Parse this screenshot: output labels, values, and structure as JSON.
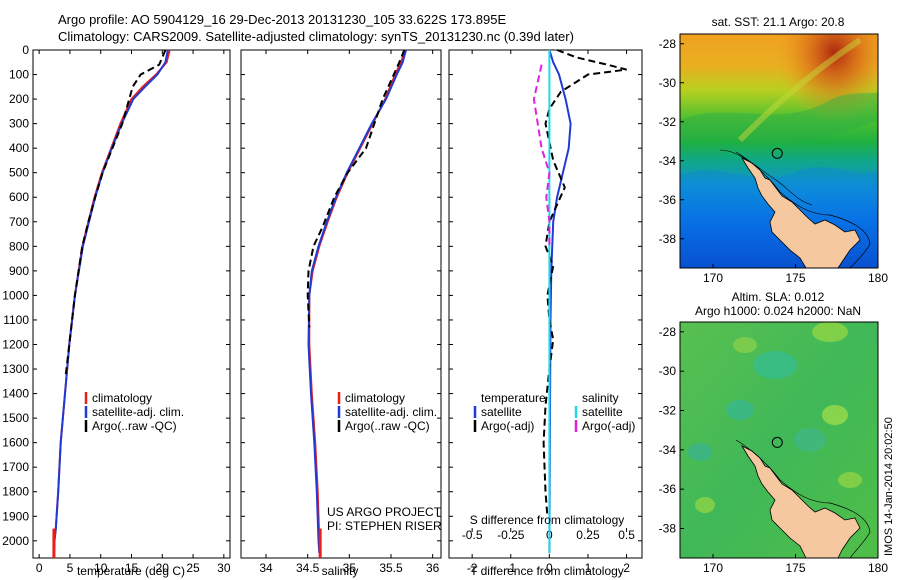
{
  "figure": {
    "title_line1": "Argo profile: AO 5904129_16 29-Dec-2013 20131230_105 33.622S 173.895E",
    "title_line2": "Climatology: CARS2009. Satellite-adjusted climatology: synTS_20131230.nc (0.39d later)",
    "timestamp": "IMOS 14-Jan-2014 20:02:50",
    "project_line1": "US ARGO PROJECT",
    "project_line2": "PI: STEPHEN RISER"
  },
  "chart_data": [
    {
      "type": "line",
      "id": "temperature",
      "xlabel": "temperature (deg C)",
      "ylabel": "",
      "xlim": [
        -1,
        31
      ],
      "ylim": [
        2070,
        0
      ],
      "xticks": [
        0,
        5,
        10,
        15,
        20,
        25,
        30
      ],
      "yticks": [
        0,
        100,
        200,
        300,
        400,
        500,
        600,
        700,
        800,
        900,
        1000,
        1100,
        1200,
        1300,
        1400,
        1500,
        1600,
        1700,
        1800,
        1900,
        2000
      ],
      "legend": [
        "climatology",
        "satellite-adj. clim.",
        "Argo(..raw -QC)"
      ],
      "legend_position": "bottom-center",
      "series": [
        {
          "name": "climatology",
          "color": "#e8201c",
          "dash": "solid",
          "x": [
            21.2,
            20.7,
            19.0,
            16.8,
            15.0,
            13.2,
            11.7,
            10.2,
            9.0,
            8.0,
            7.0,
            5.8,
            4.9,
            4.2,
            3.5,
            3.1,
            2.7,
            2.5,
            2.4
          ],
          "y": [
            0,
            50,
            100,
            150,
            200,
            300,
            400,
            500,
            600,
            700,
            800,
            1000,
            1200,
            1400,
            1600,
            1800,
            1950,
            2000,
            2050
          ]
        },
        {
          "name": "satellite-adj. clim.",
          "color": "#1f3bd6",
          "dash": "solid",
          "x": [
            20.9,
            20.5,
            19.2,
            17.2,
            15.3,
            13.4,
            11.8,
            10.3,
            9.1,
            8.1,
            7.1,
            5.8,
            4.9,
            4.2,
            3.5,
            3.1,
            2.7,
            2.5,
            2.4
          ],
          "y": [
            0,
            50,
            100,
            150,
            200,
            300,
            400,
            500,
            600,
            700,
            800,
            1000,
            1200,
            1400,
            1600,
            1800,
            1950,
            2000,
            2050
          ]
        },
        {
          "name": "Argo(..raw -QC)",
          "color": "#000000",
          "dash": "dashed",
          "x": [
            20.5,
            19.5,
            16.5,
            15.2,
            13.5,
            11.9,
            10.3,
            9.1,
            8.0,
            7.0,
            5.8,
            4.9,
            4.3
          ],
          "y": [
            0,
            60,
            100,
            150,
            300,
            400,
            500,
            600,
            700,
            800,
            1000,
            1200,
            1330
          ]
        }
      ]
    },
    {
      "type": "line",
      "id": "salinity",
      "xlabel": "salinity",
      "ylabel": "",
      "xlim": [
        33.7,
        36.1
      ],
      "ylim": [
        2070,
        0
      ],
      "xticks": [
        34,
        34.5,
        35,
        35.5,
        36
      ],
      "legend": [
        "climatology",
        "satellite-adj. clim.",
        "Argo(..raw -QC)"
      ],
      "legend_position": "bottom-center",
      "series": [
        {
          "name": "climatology",
          "color": "#e8201c",
          "dash": "solid",
          "x": [
            35.67,
            35.62,
            35.55,
            35.43,
            35.28,
            35.13,
            34.98,
            34.85,
            34.74,
            34.64,
            34.56,
            34.52,
            34.52,
            34.55,
            34.59,
            34.62,
            34.64,
            34.65
          ],
          "y": [
            0,
            50,
            100,
            200,
            300,
            400,
            500,
            600,
            700,
            800,
            900,
            1000,
            1200,
            1400,
            1600,
            1800,
            2000,
            2050
          ]
        },
        {
          "name": "satellite-adj. clim.",
          "color": "#1f3bd6",
          "dash": "solid",
          "x": [
            35.68,
            35.64,
            35.57,
            35.44,
            35.27,
            35.12,
            34.97,
            34.84,
            34.73,
            34.63,
            34.55,
            34.52,
            34.51,
            34.54,
            34.58,
            34.61,
            34.63,
            34.64
          ],
          "y": [
            0,
            50,
            100,
            200,
            300,
            400,
            500,
            600,
            700,
            800,
            900,
            1000,
            1200,
            1400,
            1600,
            1800,
            2000,
            2050
          ]
        },
        {
          "name": "Argo(..raw -QC)",
          "color": "#000000",
          "dash": "dashed",
          "x": [
            35.66,
            35.6,
            35.4,
            35.2,
            34.98,
            34.82,
            34.68,
            34.57,
            34.51,
            34.5,
            34.52
          ],
          "y": [
            0,
            50,
            200,
            400,
            500,
            600,
            720,
            800,
            900,
            1000,
            1130
          ]
        }
      ]
    },
    {
      "type": "line",
      "id": "difference",
      "xlabel": "T difference from climatology",
      "xlabel_secondary": "S difference from climatology",
      "ylabel": "",
      "xlim": [
        -2.6,
        2.4
      ],
      "ylim": [
        2070,
        0
      ],
      "xticks": [
        -2,
        -1,
        0,
        1,
        2
      ],
      "xticks_secondary": [
        -0.5,
        -0.25,
        0,
        0.25,
        0.5
      ],
      "legend_header_left": "temperature",
      "legend_header_right": "salinity",
      "legend": [
        "satellite",
        "Argo(-adj)",
        "satellite",
        "Argo(-adj)"
      ],
      "legend_position": "bottom",
      "series": [
        {
          "name": "satellite",
          "group": "temperature",
          "color": "#1f3bd6",
          "dash": "solid",
          "x": [
            0.0,
            0.1,
            0.25,
            0.42,
            0.55,
            0.5,
            0.35,
            0.2,
            0.1,
            0.05,
            0.03,
            0.02,
            0.01,
            0.0
          ],
          "y": [
            0,
            50,
            100,
            200,
            300,
            400,
            500,
            600,
            700,
            900,
            1100,
            1400,
            1800,
            2050
          ]
        },
        {
          "name": "Argo(-adj)",
          "group": "temperature",
          "color": "#000000",
          "dash": "dashed",
          "x": [
            0.2,
            0.7,
            1.5,
            2.0,
            1.0,
            0.6,
            0.3,
            0.0,
            -0.1,
            0.1,
            0.4,
            0.0,
            -0.1,
            0.1,
            -0.05,
            0.0,
            0.1,
            0.0,
            -0.1,
            -0.15,
            -0.1,
            -0.05
          ],
          "y": [
            0,
            30,
            60,
            80,
            100,
            140,
            170,
            240,
            300,
            450,
            560,
            700,
            800,
            880,
            1000,
            1100,
            1180,
            1300,
            1450,
            1600,
            1800,
            1900
          ]
        },
        {
          "name": "satellite",
          "group": "salinity",
          "color": "#22d8e8",
          "dash": "solid",
          "x": [
            0.0,
            0.0,
            0.0,
            0.0,
            0.0
          ],
          "y": [
            0,
            300,
            800,
            1500,
            2050
          ]
        },
        {
          "name": "Argo(-adj)",
          "group": "salinity",
          "color": "#e020e0",
          "dash": "dashed",
          "x": [
            -0.05,
            -0.1,
            -0.05,
            0.0,
            -0.02,
            0.0,
            0.0
          ],
          "y": [
            60,
            200,
            400,
            500,
            600,
            700,
            800
          ]
        }
      ]
    },
    {
      "type": "heatmap",
      "id": "sst-map",
      "title": "sat. SST: 21.1  Argo: 20.8",
      "xlim": [
        168,
        180
      ],
      "ylim": [
        -39.5,
        -27.5
      ],
      "xticks": [
        170,
        175,
        180
      ],
      "yticks": [
        -28,
        -30,
        -32,
        -34,
        -36,
        -38
      ],
      "profile_location": [
        173.895,
        -33.622
      ]
    },
    {
      "type": "heatmap",
      "id": "sla-map",
      "title_line1": "Altim. SLA: 0.012",
      "title_line2": "Argo h1000: 0.024 h2000: NaN",
      "xlim": [
        168,
        180
      ],
      "ylim": [
        -39.5,
        -27.5
      ],
      "xticks": [
        170,
        175,
        180
      ],
      "yticks": [
        -28,
        -30,
        -32,
        -34,
        -36,
        -38
      ],
      "profile_location": [
        173.895,
        -33.622
      ]
    }
  ]
}
